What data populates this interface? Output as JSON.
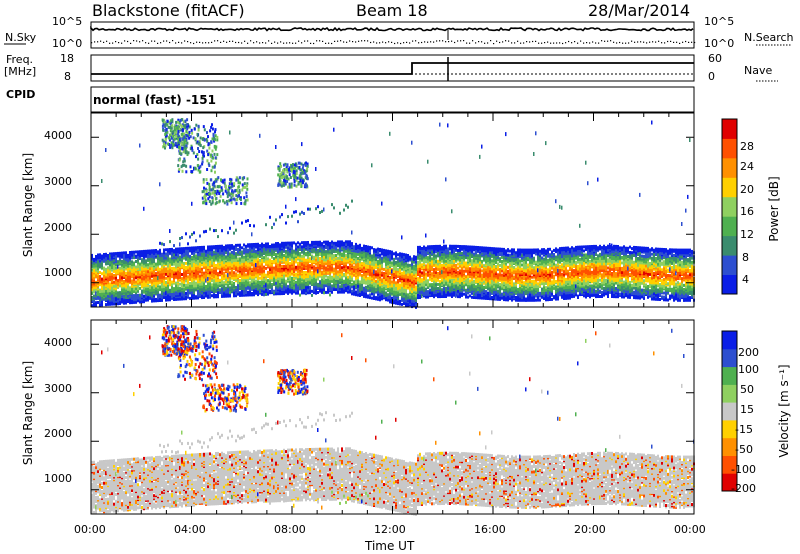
{
  "header": {
    "station": "Blackstone (fitACF)",
    "beam": "Beam 18",
    "date": "28/Mar/2014"
  },
  "noise_panel": {
    "left_label": "N.Sky",
    "right_label": "N.Search",
    "ticks": [
      "10^5",
      "10^0"
    ]
  },
  "freq_panel": {
    "left_label": "Freq.",
    "left_unit": "[MHz]",
    "left_ticks": [
      "18",
      "8"
    ],
    "right_label": "Nave",
    "right_ticks": [
      "60",
      "0"
    ]
  },
  "cpid": {
    "label": "CPID",
    "value": "normal (fast) -151"
  },
  "colors": {
    "power": [
      "#0a1ee6",
      "#2d4fd0",
      "#3a8c6e",
      "#4fb050",
      "#8fd060",
      "#ffd000",
      "#ff9000",
      "#ff5000",
      "#e00000"
    ],
    "velocity": [
      "#e00000",
      "#ff5000",
      "#ff9000",
      "#ffd000",
      "#c8c8c8",
      "#8fd060",
      "#4fb050",
      "#2d4fd0",
      "#0a1ee6"
    ]
  },
  "chart_data": [
    {
      "type": "heatmap",
      "name": "power",
      "ylabel": "Slant Range [km]",
      "yticks": [
        "1000",
        "2000",
        "3000",
        "4000"
      ],
      "ylim": [
        500,
        4500
      ],
      "colorbar_label": "Power [dB]",
      "colorbar_ticks": [
        "4",
        "8",
        "12",
        "16",
        "20",
        "24",
        "28"
      ],
      "colorbar_range": [
        0,
        32
      ]
    },
    {
      "type": "heatmap",
      "name": "velocity",
      "ylabel": "Slant Range [km]",
      "yticks": [
        "1000",
        "2000",
        "3000",
        "4000"
      ],
      "ylim": [
        500,
        4500
      ],
      "colorbar_label": "Velocity [m s⁻¹]",
      "colorbar_ticks": [
        "200",
        "100",
        "50",
        "15",
        "-15",
        "-50",
        "-100",
        "-200"
      ],
      "xlabel": "Time UT",
      "xticks": [
        "00:00",
        "04:00",
        "08:00",
        "12:00",
        "16:00",
        "20:00",
        "00:00"
      ],
      "xlim_hours": [
        0,
        24
      ]
    }
  ]
}
